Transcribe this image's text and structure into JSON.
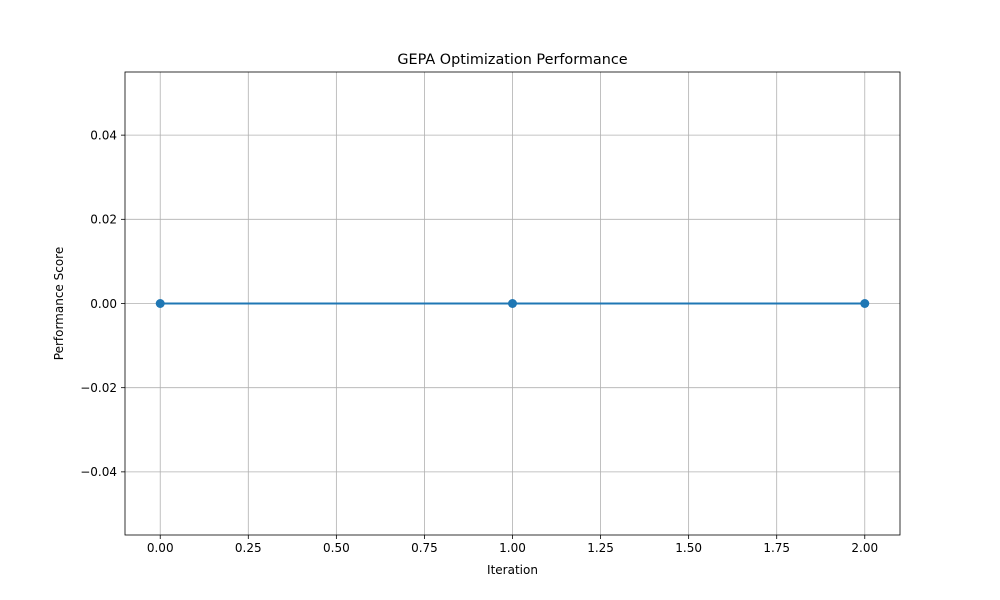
{
  "chart_data": {
    "type": "line",
    "title": "GEPA Optimization Performance",
    "xlabel": "Iteration",
    "ylabel": "Performance Score",
    "x": [
      0,
      1,
      2
    ],
    "series": [
      {
        "values": [
          0.0,
          0.0,
          0.0
        ],
        "color": "#1f77b4",
        "marker": "circle"
      }
    ],
    "xlim": [
      -0.1,
      2.1
    ],
    "ylim": [
      -0.055,
      0.055
    ],
    "xticks": [
      0.0,
      0.25,
      0.5,
      0.75,
      1.0,
      1.25,
      1.5,
      1.75,
      2.0
    ],
    "xtick_labels": [
      "0.00",
      "0.25",
      "0.50",
      "0.75",
      "1.00",
      "1.25",
      "1.50",
      "1.75",
      "2.00"
    ],
    "yticks": [
      -0.04,
      -0.02,
      0.0,
      0.02,
      0.04
    ],
    "ytick_labels": [
      "−0.04",
      "−0.02",
      "0.00",
      "0.02",
      "0.04"
    ],
    "grid": true,
    "legend": "none"
  }
}
